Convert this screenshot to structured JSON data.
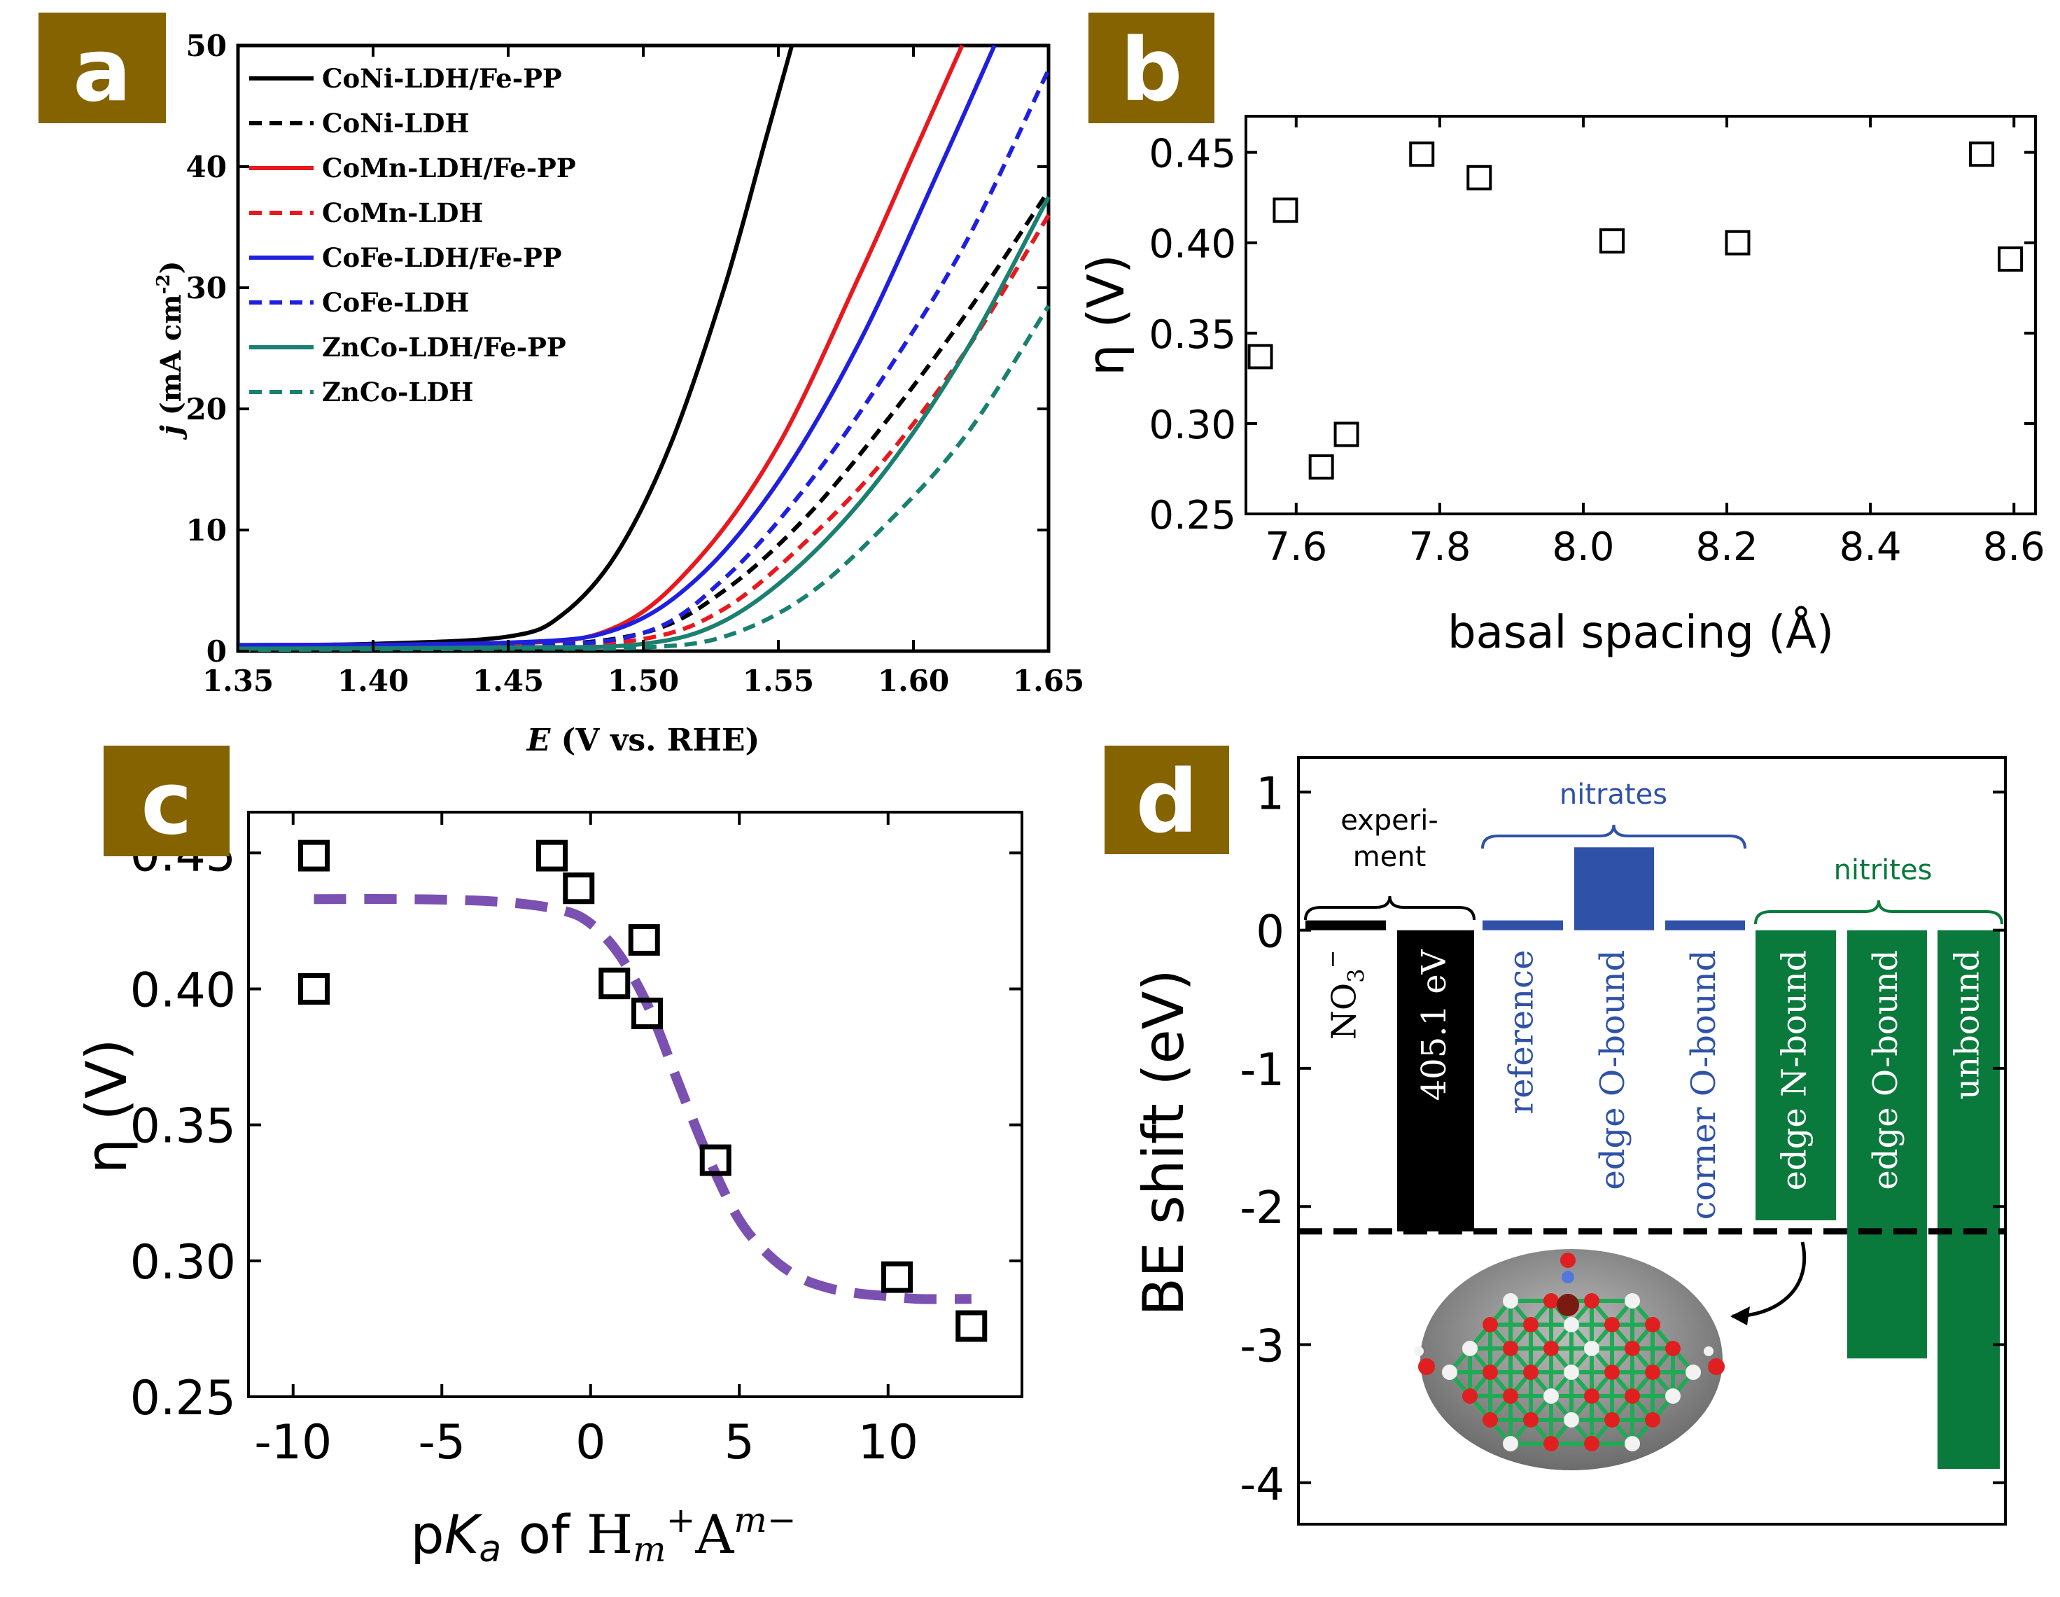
{
  "colors": {
    "badge": "#846300",
    "badge_text": "#ffffff",
    "black": "#000000",
    "red": "#e8191e",
    "blue": "#1f1fe0",
    "teal": "#1a8070",
    "purple": "#7a50b0",
    "nitrate_blue": "#2f52a8",
    "nitrite_green": "#0a7a3c",
    "inset_bg": "#8a8a8a"
  },
  "chart_data": [
    {
      "panel": "a",
      "type": "line",
      "title": "",
      "xlabel_var": "E",
      "xlabel_rest": " (V vs. RHE)",
      "ylabel_var": "j",
      "ylabel_rest": " (mA cm",
      "ylabel_sup": "-2",
      "ylabel_close": ")",
      "xlim": [
        1.35,
        1.65
      ],
      "ylim": [
        0,
        50
      ],
      "xticks": [
        "1.35",
        "1.40",
        "1.45",
        "1.50",
        "1.55",
        "1.60",
        "1.65"
      ],
      "yticks": [
        "0",
        "10",
        "20",
        "30",
        "40",
        "50"
      ],
      "legend_position": "top-left",
      "series": [
        {
          "name": "CoNi-LDH/Fe-PP",
          "color": "#000000",
          "dash": false,
          "x": [
            1.35,
            1.4,
            1.45,
            1.47,
            1.49,
            1.51,
            1.53,
            1.545,
            1.555
          ],
          "y": [
            0.5,
            0.6,
            1.2,
            3.0,
            8.0,
            17.0,
            30.0,
            42.0,
            50.0
          ]
        },
        {
          "name": "CoNi-LDH",
          "color": "#000000",
          "dash": true,
          "x": [
            1.35,
            1.45,
            1.5,
            1.53,
            1.56,
            1.59,
            1.62,
            1.65
          ],
          "y": [
            0.2,
            0.4,
            1.5,
            5.0,
            11.0,
            19.0,
            28.0,
            38.0
          ]
        },
        {
          "name": "CoMn-LDH/Fe-PP",
          "color": "#e8191e",
          "dash": false,
          "x": [
            1.35,
            1.45,
            1.49,
            1.52,
            1.55,
            1.58,
            1.6,
            1.618
          ],
          "y": [
            0.4,
            0.6,
            2.0,
            7.5,
            17.0,
            31.0,
            41.0,
            50.0
          ]
        },
        {
          "name": "CoMn-LDH",
          "color": "#e8191e",
          "dash": true,
          "x": [
            1.35,
            1.45,
            1.5,
            1.53,
            1.56,
            1.59,
            1.62,
            1.65
          ],
          "y": [
            0.2,
            0.4,
            1.0,
            3.5,
            9.0,
            16.0,
            25.0,
            36.0
          ]
        },
        {
          "name": "CoFe-LDH/Fe-PP",
          "color": "#1f1fe0",
          "dash": false,
          "x": [
            1.35,
            1.45,
            1.49,
            1.52,
            1.55,
            1.58,
            1.61,
            1.63
          ],
          "y": [
            0.5,
            0.7,
            1.8,
            6.0,
            14.0,
            25.5,
            40.0,
            50.0
          ]
        },
        {
          "name": "CoFe-LDH",
          "color": "#1f1fe0",
          "dash": true,
          "x": [
            1.35,
            1.45,
            1.5,
            1.53,
            1.56,
            1.59,
            1.62,
            1.65
          ],
          "y": [
            0.2,
            0.4,
            1.5,
            6.0,
            13.5,
            23.0,
            34.0,
            48.0
          ]
        },
        {
          "name": "ZnCo-LDH/Fe-PP",
          "color": "#1a8070",
          "dash": false,
          "x": [
            1.35,
            1.45,
            1.5,
            1.53,
            1.56,
            1.59,
            1.62,
            1.65
          ],
          "y": [
            0.2,
            0.3,
            0.6,
            2.5,
            7.5,
            15.0,
            25.0,
            37.5
          ]
        },
        {
          "name": "ZnCo-LDH",
          "color": "#1a8070",
          "dash": true,
          "x": [
            1.35,
            1.45,
            1.5,
            1.53,
            1.56,
            1.59,
            1.62,
            1.65
          ],
          "y": [
            0.1,
            0.2,
            0.3,
            1.2,
            4.5,
            10.5,
            18.0,
            28.5
          ]
        }
      ]
    },
    {
      "panel": "b",
      "type": "scatter",
      "title": "",
      "xlabel": "basal spacing (Å)",
      "ylabel": "η (V)",
      "xlim": [
        7.53,
        8.63
      ],
      "ylim": [
        0.25,
        0.47
      ],
      "xticks": [
        "7.6",
        "7.8",
        "8.0",
        "8.2",
        "8.4",
        "8.6"
      ],
      "yticks": [
        "0.25",
        "0.30",
        "0.35",
        "0.40",
        "0.45"
      ],
      "points": [
        {
          "x": 7.55,
          "y": 0.337
        },
        {
          "x": 7.585,
          "y": 0.418
        },
        {
          "x": 7.635,
          "y": 0.276
        },
        {
          "x": 7.67,
          "y": 0.294
        },
        {
          "x": 7.775,
          "y": 0.449
        },
        {
          "x": 7.855,
          "y": 0.436
        },
        {
          "x": 8.04,
          "y": 0.401
        },
        {
          "x": 8.215,
          "y": 0.4
        },
        {
          "x": 8.555,
          "y": 0.449
        },
        {
          "x": 8.595,
          "y": 0.391
        }
      ]
    },
    {
      "panel": "c",
      "type": "scatter",
      "title": "",
      "xlabel_p": "p",
      "xlabel_K": "K",
      "xlabel_a": "a",
      "xlabel_of": " of ",
      "xlabel_H": "H",
      "xlabel_m1": "m",
      "xlabel_plus": "+",
      "xlabel_A": "A",
      "xlabel_m2": "m",
      "xlabel_minus": "−",
      "ylabel": "η (V)",
      "xlim": [
        -11.5,
        14.5
      ],
      "ylim": [
        0.25,
        0.465
      ],
      "xticks": [
        "-10",
        "-5",
        "0",
        "5",
        "10"
      ],
      "yticks": [
        "0.25",
        "0.30",
        "0.35",
        "0.40",
        "0.45"
      ],
      "points": [
        {
          "x": -9.3,
          "y": 0.449
        },
        {
          "x": -9.3,
          "y": 0.4
        },
        {
          "x": -1.3,
          "y": 0.449
        },
        {
          "x": -0.4,
          "y": 0.437
        },
        {
          "x": 0.8,
          "y": 0.402
        },
        {
          "x": 1.8,
          "y": 0.418
        },
        {
          "x": 1.9,
          "y": 0.391
        },
        {
          "x": 4.2,
          "y": 0.337
        },
        {
          "x": 10.3,
          "y": 0.294
        },
        {
          "x": 12.8,
          "y": 0.276
        }
      ],
      "fit": {
        "name": "sigmoid fit",
        "color": "#7a50b0",
        "x": [
          -9.3,
          -6,
          -3,
          -1,
          0,
          1,
          2,
          3,
          4,
          5,
          6,
          7,
          8,
          9,
          10,
          11,
          12.8
        ],
        "y": [
          0.433,
          0.433,
          0.432,
          0.429,
          0.424,
          0.412,
          0.392,
          0.364,
          0.337,
          0.315,
          0.302,
          0.294,
          0.29,
          0.288,
          0.287,
          0.286,
          0.286
        ]
      }
    },
    {
      "panel": "d",
      "type": "bar",
      "title": "",
      "ylabel": "BE shift (eV)",
      "ylim": [
        -4.3,
        1.25
      ],
      "yticks": [
        "1",
        "0",
        "-1",
        "-2",
        "-3",
        "-4"
      ],
      "reference_line_value": -2.18,
      "groups": [
        {
          "label": "experi-",
          "label2": "ment"
        },
        {
          "label": "nitrates"
        },
        {
          "label": "nitrites"
        }
      ],
      "bars": [
        {
          "label_main": "NO",
          "label_sub": "3",
          "label_sup": "−",
          "value": 0.05,
          "color": "#000000",
          "group": 0
        },
        {
          "label": "405.1 eV",
          "value": -2.18,
          "color": "#000000",
          "group": 0
        },
        {
          "label": "reference",
          "value": 0.05,
          "color": "#2f52a8",
          "group": 1
        },
        {
          "label": "edge O-bound",
          "value": 0.6,
          "color": "#2f52a8",
          "group": 1
        },
        {
          "label": "corner O-bound",
          "value": 0.05,
          "color": "#2f52a8",
          "group": 1
        },
        {
          "label": "edge N-bound",
          "value": -2.1,
          "color": "#0a7a3c",
          "group": 2
        },
        {
          "label": "edge O-bound",
          "value": -3.1,
          "color": "#0a7a3c",
          "group": 2
        },
        {
          "label": "unbound",
          "value": -3.9,
          "color": "#0a7a3c",
          "group": 2
        }
      ]
    }
  ]
}
